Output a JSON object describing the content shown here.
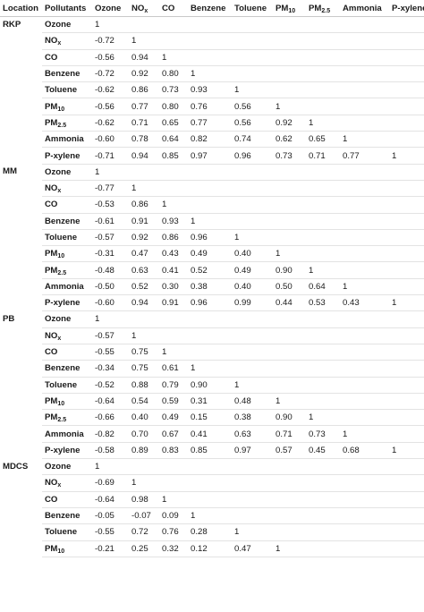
{
  "headers": [
    "Location",
    "Pollutants",
    "Ozone",
    "NO|x",
    "CO",
    "Benzene",
    "Toluene",
    "PM|10",
    "PM|2.5",
    "Ammonia",
    "P-xylene"
  ],
  "groups": [
    {
      "location": "RKP",
      "rows": [
        {
          "pollutant": "Ozone",
          "values": [
            "1"
          ]
        },
        {
          "pollutant": "NO|x",
          "values": [
            "-0.72",
            "1"
          ]
        },
        {
          "pollutant": "CO",
          "values": [
            "-0.56",
            "0.94",
            "1"
          ]
        },
        {
          "pollutant": "Benzene",
          "values": [
            "-0.72",
            "0.92",
            "0.80",
            "1"
          ]
        },
        {
          "pollutant": "Toluene",
          "values": [
            "-0.62",
            "0.86",
            "0.73",
            "0.93",
            "1"
          ]
        },
        {
          "pollutant": "PM|10",
          "values": [
            "-0.56",
            "0.77",
            "0.80",
            "0.76",
            "0.56",
            "1"
          ]
        },
        {
          "pollutant": "PM|2.5",
          "values": [
            "-0.62",
            "0.71",
            "0.65",
            "0.77",
            "0.56",
            "0.92",
            "1"
          ]
        },
        {
          "pollutant": "Ammonia",
          "values": [
            "-0.60",
            "0.78",
            "0.64",
            "0.82",
            "0.74",
            "0.62",
            "0.65",
            "1"
          ]
        },
        {
          "pollutant": "P-xylene",
          "values": [
            "-0.71",
            "0.94",
            "0.85",
            "0.97",
            "0.96",
            "0.73",
            "0.71",
            "0.77",
            "1"
          ]
        }
      ]
    },
    {
      "location": "MM",
      "rows": [
        {
          "pollutant": "Ozone",
          "values": [
            "1"
          ]
        },
        {
          "pollutant": "NO|x",
          "values": [
            "-0.77",
            "1"
          ]
        },
        {
          "pollutant": "CO",
          "values": [
            "-0.53",
            "0.86",
            "1"
          ]
        },
        {
          "pollutant": "Benzene",
          "values": [
            "-0.61",
            "0.91",
            "0.93",
            "1"
          ]
        },
        {
          "pollutant": "Toluene",
          "values": [
            "-0.57",
            "0.92",
            "0.86",
            "0.96",
            "1"
          ]
        },
        {
          "pollutant": "PM|10",
          "values": [
            "-0.31",
            "0.47",
            "0.43",
            "0.49",
            "0.40",
            "1"
          ]
        },
        {
          "pollutant": "PM|2.5",
          "values": [
            "-0.48",
            "0.63",
            "0.41",
            "0.52",
            "0.49",
            "0.90",
            "1"
          ]
        },
        {
          "pollutant": "Ammonia",
          "values": [
            "-0.50",
            "0.52",
            "0.30",
            "0.38",
            "0.40",
            "0.50",
            "0.64",
            "1"
          ]
        },
        {
          "pollutant": "P-xylene",
          "values": [
            "-0.60",
            "0.94",
            "0.91",
            "0.96",
            "0.99",
            "0.44",
            "0.53",
            "0.43",
            "1"
          ]
        }
      ]
    },
    {
      "location": "PB",
      "rows": [
        {
          "pollutant": "Ozone",
          "values": [
            "1"
          ]
        },
        {
          "pollutant": "NO|x",
          "values": [
            "-0.57",
            "1"
          ]
        },
        {
          "pollutant": "CO",
          "values": [
            "-0.55",
            "0.75",
            "1"
          ]
        },
        {
          "pollutant": "Benzene",
          "values": [
            "-0.34",
            "0.75",
            "0.61",
            "1"
          ]
        },
        {
          "pollutant": "Toluene",
          "values": [
            "-0.52",
            "0.88",
            "0.79",
            "0.90",
            "1"
          ]
        },
        {
          "pollutant": "PM|10",
          "values": [
            "-0.64",
            "0.54",
            "0.59",
            "0.31",
            "0.48",
            "1"
          ]
        },
        {
          "pollutant": "PM|2.5",
          "values": [
            "-0.66",
            "0.40",
            "0.49",
            "0.15",
            "0.38",
            "0.90",
            "1"
          ]
        },
        {
          "pollutant": "Ammonia",
          "values": [
            "-0.82",
            "0.70",
            "0.67",
            "0.41",
            "0.63",
            "0.71",
            "0.73",
            "1"
          ]
        },
        {
          "pollutant": "P-xylene",
          "values": [
            "-0.58",
            "0.89",
            "0.83",
            "0.85",
            "0.97",
            "0.57",
            "0.45",
            "0.68",
            "1"
          ]
        }
      ]
    },
    {
      "location": "MDCS",
      "rows": [
        {
          "pollutant": "Ozone",
          "values": [
            "1"
          ]
        },
        {
          "pollutant": "NO|x",
          "values": [
            "-0.69",
            "1"
          ]
        },
        {
          "pollutant": "CO",
          "values": [
            "-0.64",
            "0.98",
            "1"
          ]
        },
        {
          "pollutant": "Benzene",
          "values": [
            "-0.05",
            "-0.07",
            "0.09",
            "1"
          ]
        },
        {
          "pollutant": "Toluene",
          "values": [
            "-0.55",
            "0.72",
            "0.76",
            "0.28",
            "1"
          ]
        },
        {
          "pollutant": "PM|10",
          "values": [
            "-0.21",
            "0.25",
            "0.32",
            "0.12",
            "0.47",
            "1"
          ]
        }
      ]
    }
  ]
}
